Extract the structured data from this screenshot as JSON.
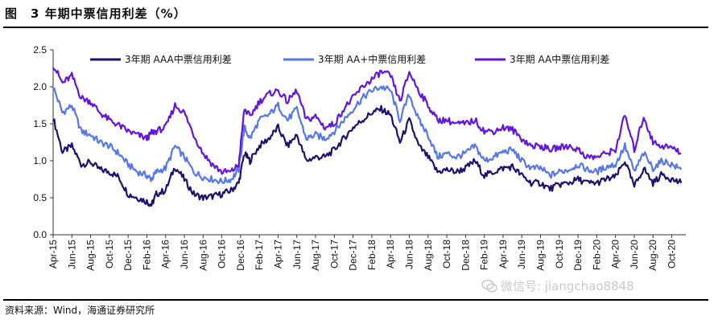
{
  "title": "图　3 年期中票信用利差（%）",
  "source": "资料来源：Wind，海通证券研究所",
  "watermark": "微信号: jiangchao8848",
  "chart_data": {
    "type": "line",
    "title": "3 年期中票信用利差（%）",
    "xlabel": "",
    "ylabel": "",
    "ylim": [
      0.0,
      2.5
    ],
    "yticks": [
      "0.0",
      "0.5",
      "1.0",
      "1.5",
      "2.0",
      "2.5"
    ],
    "x_tick_labels": [
      "Apr-15",
      "Jun-15",
      "Aug-15",
      "Oct-15",
      "Dec-15",
      "Feb-16",
      "Apr-16",
      "Jun-16",
      "Aug-16",
      "Oct-16",
      "Dec-16",
      "Feb-17",
      "Apr-17",
      "Jun-17",
      "Aug-17",
      "Oct-17",
      "Dec-17",
      "Feb-18",
      "Apr-18",
      "Jun-18",
      "Aug-18",
      "Oct-18",
      "Dec-18",
      "Feb-19",
      "Apr-19",
      "Jun-19",
      "Aug-19",
      "Oct-19",
      "Dec-19",
      "Feb-20",
      "Apr-20",
      "Jun-20",
      "Aug-20",
      "Oct-20"
    ],
    "x_start": "2015-04",
    "x_end": "2020-11",
    "legend_placement": "top",
    "series": [
      {
        "name": "3年期 AAA中票信用利差",
        "color": "#1c1170",
        "points": [
          [
            0,
            1.58
          ],
          [
            1,
            1.12
          ],
          [
            2,
            1.2
          ],
          [
            3,
            0.95
          ],
          [
            4,
            0.98
          ],
          [
            5,
            0.88
          ],
          [
            6,
            0.85
          ],
          [
            7,
            0.78
          ],
          [
            8,
            0.55
          ],
          [
            9,
            0.5
          ],
          [
            10,
            0.45
          ],
          [
            10.5,
            0.4
          ],
          [
            11,
            0.55
          ],
          [
            12,
            0.6
          ],
          [
            13,
            0.92
          ],
          [
            14,
            0.75
          ],
          [
            15,
            0.55
          ],
          [
            16,
            0.5
          ],
          [
            17,
            0.52
          ],
          [
            18,
            0.55
          ],
          [
            19,
            0.6
          ],
          [
            19.8,
            0.7
          ],
          [
            20.4,
            1.1
          ],
          [
            21,
            1.0
          ],
          [
            22,
            1.2
          ],
          [
            23,
            1.3
          ],
          [
            24,
            1.45
          ],
          [
            25,
            1.2
          ],
          [
            26,
            1.35
          ],
          [
            27,
            1.0
          ],
          [
            28,
            1.05
          ],
          [
            29,
            1.05
          ],
          [
            30,
            1.15
          ],
          [
            31,
            1.3
          ],
          [
            32,
            1.45
          ],
          [
            33,
            1.55
          ],
          [
            34,
            1.65
          ],
          [
            35,
            1.7
          ],
          [
            36,
            1.62
          ],
          [
            37,
            1.25
          ],
          [
            38,
            1.55
          ],
          [
            39,
            1.2
          ],
          [
            40,
            1.05
          ],
          [
            41,
            0.85
          ],
          [
            42,
            0.88
          ],
          [
            43,
            0.85
          ],
          [
            44,
            0.9
          ],
          [
            45,
            1.0
          ],
          [
            46,
            0.8
          ],
          [
            47,
            0.85
          ],
          [
            48,
            0.9
          ],
          [
            49,
            0.92
          ],
          [
            50,
            0.8
          ],
          [
            51,
            0.7
          ],
          [
            52,
            0.7
          ],
          [
            53,
            0.62
          ],
          [
            54,
            0.68
          ],
          [
            55,
            0.7
          ],
          [
            56,
            0.75
          ],
          [
            57,
            0.7
          ],
          [
            58,
            0.7
          ],
          [
            59,
            0.75
          ],
          [
            60,
            0.78
          ],
          [
            61,
            1.0
          ],
          [
            62,
            0.65
          ],
          [
            63,
            0.9
          ],
          [
            64,
            0.7
          ],
          [
            65,
            0.82
          ],
          [
            66,
            0.75
          ],
          [
            67,
            0.7
          ]
        ]
      },
      {
        "name": "3年期 AA+中票信用利差",
        "color": "#5577ee",
        "points": [
          [
            0,
            2.0
          ],
          [
            1,
            1.65
          ],
          [
            2,
            1.75
          ],
          [
            3,
            1.4
          ],
          [
            4,
            1.35
          ],
          [
            5,
            1.25
          ],
          [
            6,
            1.2
          ],
          [
            7,
            1.1
          ],
          [
            8,
            0.95
          ],
          [
            9,
            0.85
          ],
          [
            10,
            0.8
          ],
          [
            10.5,
            0.75
          ],
          [
            11,
            0.85
          ],
          [
            12,
            0.9
          ],
          [
            13,
            1.2
          ],
          [
            14,
            1.05
          ],
          [
            15,
            0.85
          ],
          [
            16,
            0.78
          ],
          [
            17,
            0.75
          ],
          [
            18,
            0.72
          ],
          [
            19,
            0.75
          ],
          [
            19.8,
            0.88
          ],
          [
            20.4,
            1.45
          ],
          [
            21,
            1.3
          ],
          [
            22,
            1.55
          ],
          [
            23,
            1.62
          ],
          [
            24,
            1.75
          ],
          [
            25,
            1.55
          ],
          [
            26,
            1.7
          ],
          [
            27,
            1.3
          ],
          [
            28,
            1.35
          ],
          [
            29,
            1.3
          ],
          [
            30,
            1.4
          ],
          [
            31,
            1.55
          ],
          [
            32,
            1.7
          ],
          [
            33,
            1.85
          ],
          [
            34,
            1.95
          ],
          [
            35,
            2.0
          ],
          [
            36,
            1.95
          ],
          [
            37,
            1.55
          ],
          [
            38,
            1.9
          ],
          [
            39,
            1.55
          ],
          [
            40,
            1.35
          ],
          [
            41,
            1.05
          ],
          [
            42,
            1.1
          ],
          [
            43,
            1.05
          ],
          [
            44,
            1.1
          ],
          [
            45,
            1.2
          ],
          [
            46,
            1.0
          ],
          [
            47,
            1.05
          ],
          [
            48,
            1.12
          ],
          [
            49,
            1.15
          ],
          [
            50,
            1.0
          ],
          [
            51,
            0.9
          ],
          [
            52,
            0.9
          ],
          [
            53,
            0.8
          ],
          [
            54,
            0.85
          ],
          [
            55,
            0.88
          ],
          [
            56,
            0.95
          ],
          [
            57,
            0.88
          ],
          [
            58,
            0.85
          ],
          [
            59,
            0.92
          ],
          [
            60,
            0.95
          ],
          [
            61,
            1.2
          ],
          [
            62,
            0.85
          ],
          [
            63,
            1.1
          ],
          [
            64,
            0.9
          ],
          [
            65,
            1.0
          ],
          [
            66,
            0.95
          ],
          [
            67,
            0.88
          ]
        ]
      },
      {
        "name": "3年期 AA中票信用利差",
        "color": "#6314e0",
        "points": [
          [
            0,
            2.3
          ],
          [
            1,
            2.05
          ],
          [
            2,
            2.15
          ],
          [
            3,
            1.85
          ],
          [
            4,
            1.8
          ],
          [
            5,
            1.65
          ],
          [
            6,
            1.55
          ],
          [
            7,
            1.48
          ],
          [
            8,
            1.4
          ],
          [
            9,
            1.35
          ],
          [
            10,
            1.3
          ],
          [
            10.5,
            1.38
          ],
          [
            11,
            1.4
          ],
          [
            12,
            1.45
          ],
          [
            13,
            1.75
          ],
          [
            14,
            1.65
          ],
          [
            15,
            1.35
          ],
          [
            16,
            1.1
          ],
          [
            17,
            0.95
          ],
          [
            18,
            0.85
          ],
          [
            19,
            0.85
          ],
          [
            19.8,
            0.95
          ],
          [
            20.4,
            1.7
          ],
          [
            21,
            1.6
          ],
          [
            22,
            1.8
          ],
          [
            23,
            1.9
          ],
          [
            24,
            1.95
          ],
          [
            25,
            1.8
          ],
          [
            26,
            1.95
          ],
          [
            27,
            1.55
          ],
          [
            28,
            1.6
          ],
          [
            29,
            1.45
          ],
          [
            30,
            1.5
          ],
          [
            31,
            1.7
          ],
          [
            32,
            1.85
          ],
          [
            33,
            2.0
          ],
          [
            34,
            2.1
          ],
          [
            35,
            2.2
          ],
          [
            36,
            2.15
          ],
          [
            37,
            1.8
          ],
          [
            38,
            2.2
          ],
          [
            39,
            1.95
          ],
          [
            40,
            1.75
          ],
          [
            41,
            1.55
          ],
          [
            42,
            1.55
          ],
          [
            43,
            1.5
          ],
          [
            44,
            1.5
          ],
          [
            45,
            1.55
          ],
          [
            46,
            1.4
          ],
          [
            47,
            1.4
          ],
          [
            48,
            1.45
          ],
          [
            49,
            1.42
          ],
          [
            50,
            1.3
          ],
          [
            51,
            1.2
          ],
          [
            52,
            1.2
          ],
          [
            53,
            1.15
          ],
          [
            54,
            1.18
          ],
          [
            55,
            1.2
          ],
          [
            56,
            1.15
          ],
          [
            57,
            1.05
          ],
          [
            58,
            1.05
          ],
          [
            59,
            1.1
          ],
          [
            60,
            1.15
          ],
          [
            61,
            1.62
          ],
          [
            62,
            1.15
          ],
          [
            63,
            1.6
          ],
          [
            64,
            1.25
          ],
          [
            65,
            1.2
          ],
          [
            66,
            1.18
          ],
          [
            67,
            1.1
          ]
        ]
      }
    ]
  }
}
